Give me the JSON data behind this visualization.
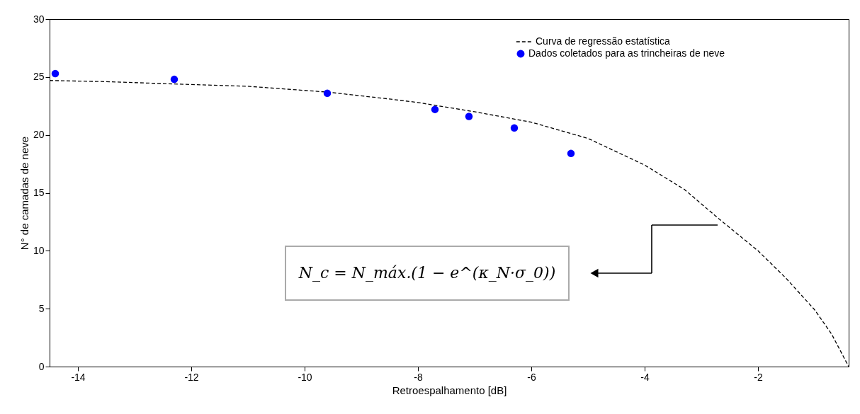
{
  "chart_data": {
    "type": "line",
    "xlabel": "Retroespalhamento [dB]",
    "ylabel": "N° de camadas de neve",
    "xlim": [
      -14.5,
      -0.4
    ],
    "ylim": [
      0,
      30
    ],
    "xticks": [
      -14,
      -12,
      -10,
      -8,
      -6,
      -4,
      -2
    ],
    "yticks": [
      0,
      5,
      10,
      15,
      20,
      25,
      30
    ],
    "grid": false,
    "legend": "top right",
    "series": [
      {
        "name": "Curva de regressão estatística",
        "line_style": "dashed",
        "marker": "none",
        "color": "#000000",
        "x": [
          -14.5,
          -13.5,
          -12.3,
          -11,
          -9.6,
          -8.5,
          -8,
          -7,
          -6,
          -5,
          -4,
          -3.3,
          -2.7,
          -2,
          -1.5,
          -1,
          -0.7,
          -0.4
        ],
        "values": [
          24.7,
          24.6,
          24.4,
          24.2,
          23.7,
          23.1,
          22.8,
          22.0,
          21.1,
          19.7,
          17.4,
          15.3,
          12.8,
          10.0,
          7.6,
          4.9,
          2.8,
          0
        ]
      },
      {
        "name": "Dados coletados para as trincheiras de neve",
        "type": "scatter",
        "marker": "circle",
        "color": "#0000ff",
        "x": [
          -14.4,
          -12.3,
          -9.6,
          -7.7,
          -7.1,
          -6.3,
          -5.3
        ],
        "values": [
          25.3,
          24.8,
          23.6,
          22.2,
          21.6,
          20.6,
          18.4
        ]
      }
    ],
    "annotations": [
      "N_c = N_máx.(1 − e^(κ_N·σ_0))"
    ]
  }
}
